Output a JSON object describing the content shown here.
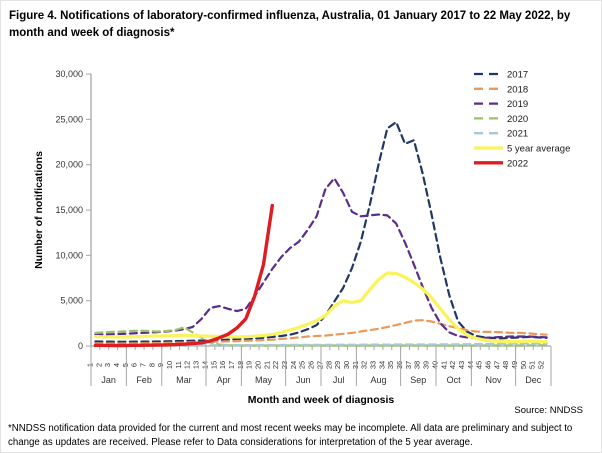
{
  "figure": {
    "title": "Figure 4. Notifications of laboratory-confirmed influenza, Australia, 01 January 2017 to 22 May 2022, by month and week of diagnosis*",
    "source": "Source: NNDSS",
    "footnote": "*NNDSS notification data provided for the current and most recent weeks may be incomplete. All data are preliminary and subject to change as updates are received. Please refer to Data considerations for interpretation of the 5 year average."
  },
  "chart_data": {
    "type": "line",
    "title": "Notifications of laboratory-confirmed influenza, Australia, 01 January 2017 to 22 May 2022, by month and week of diagnosis",
    "xlabel": "Month and week of diagnosis",
    "ylabel": "Number of notifications",
    "ylim": [
      0,
      30000
    ],
    "y_step": 5000,
    "y_ticks": [
      "0",
      "5,000",
      "10,000",
      "15,000",
      "20,000",
      "25,000",
      "30,000"
    ],
    "x_count": 52,
    "grid": false,
    "legend_position": "top-right",
    "axis_color": "#A6A6A6",
    "months": [
      {
        "label": "Jan",
        "weeks": 4
      },
      {
        "label": "Feb",
        "weeks": 4
      },
      {
        "label": "Mar",
        "weeks": 5
      },
      {
        "label": "Apr",
        "weeks": 4
      },
      {
        "label": "May",
        "weeks": 5
      },
      {
        "label": "Jun",
        "weeks": 4
      },
      {
        "label": "Jul",
        "weeks": 4
      },
      {
        "label": "Aug",
        "weeks": 5
      },
      {
        "label": "Sep",
        "weeks": 4
      },
      {
        "label": "Oct",
        "weeks": 4
      },
      {
        "label": "Nov",
        "weeks": 5
      },
      {
        "label": "Dec",
        "weeks": 4
      }
    ],
    "series": [
      {
        "key": "2017",
        "name": "2017",
        "color": "#1F3864",
        "style": "dashed",
        "values": [
          500,
          480,
          470,
          460,
          470,
          480,
          490,
          500,
          520,
          540,
          560,
          580,
          600,
          630,
          660,
          700,
          740,
          790,
          840,
          900,
          1000,
          1100,
          1250,
          1500,
          1850,
          2300,
          3350,
          4900,
          6400,
          8600,
          11500,
          15500,
          20000,
          24000,
          24700,
          22300,
          22700,
          19000,
          14500,
          9700,
          5600,
          2700,
          1600,
          1100,
          950,
          880,
          850,
          900,
          950,
          1000,
          950,
          900
        ]
      },
      {
        "key": "2018",
        "name": "2018",
        "color": "#E8995C",
        "style": "dashed",
        "values": [
          300,
          290,
          280,
          280,
          290,
          300,
          310,
          320,
          340,
          360,
          380,
          400,
          420,
          450,
          480,
          510,
          540,
          570,
          610,
          650,
          700,
          780,
          850,
          950,
          1050,
          1100,
          1150,
          1250,
          1350,
          1450,
          1600,
          1750,
          1900,
          2100,
          2300,
          2550,
          2800,
          2850,
          2700,
          2450,
          2200,
          1950,
          1750,
          1600,
          1550,
          1550,
          1500,
          1450,
          1450,
          1400,
          1300,
          1250
        ]
      },
      {
        "key": "2019",
        "name": "2019",
        "color": "#5B2D8A",
        "style": "dashed",
        "values": [
          1300,
          1280,
          1300,
          1330,
          1380,
          1430,
          1480,
          1530,
          1600,
          1700,
          1850,
          2100,
          3000,
          4200,
          4400,
          4100,
          3850,
          4100,
          5500,
          7000,
          8500,
          9800,
          10800,
          11500,
          12800,
          14300,
          17300,
          18500,
          16900,
          14800,
          14300,
          14400,
          14500,
          14400,
          13500,
          11400,
          9000,
          6500,
          4200,
          2500,
          1500,
          1100,
          950,
          900,
          900,
          950,
          1000,
          1050,
          1050,
          1050,
          1000,
          950
        ]
      },
      {
        "key": "2020",
        "name": "2020",
        "color": "#9BC269",
        "style": "dashed",
        "values": [
          1450,
          1500,
          1550,
          1600,
          1650,
          1700,
          1650,
          1600,
          1650,
          1750,
          2050,
          1500,
          900,
          400,
          150,
          80,
          60,
          50,
          50,
          50,
          50,
          50,
          50,
          50,
          50,
          50,
          50,
          50,
          50,
          50,
          50,
          50,
          50,
          50,
          50,
          50,
          50,
          50,
          50,
          50,
          50,
          50,
          50,
          50,
          50,
          50,
          50,
          50,
          60,
          70,
          80,
          90
        ]
      },
      {
        "key": "2021",
        "name": "2021",
        "color": "#A6C9D6",
        "style": "dashed",
        "values": [
          60,
          55,
          50,
          50,
          50,
          55,
          60,
          60,
          65,
          70,
          75,
          80,
          85,
          90,
          90,
          95,
          100,
          100,
          105,
          110,
          110,
          115,
          120,
          120,
          125,
          130,
          130,
          135,
          140,
          140,
          145,
          150,
          150,
          155,
          160,
          160,
          165,
          170,
          170,
          175,
          180,
          190,
          200,
          210,
          220,
          230,
          240,
          250,
          250,
          250,
          250,
          250
        ]
      },
      {
        "key": "5yr",
        "name": "5 year average",
        "color": "#FAF35C",
        "style": "solid",
        "values": [
          1050,
          1020,
          1000,
          1000,
          1020,
          1050,
          1080,
          1100,
          1120,
          1150,
          1200,
          1150,
          1100,
          1080,
          1050,
          1020,
          1000,
          1020,
          1080,
          1150,
          1280,
          1500,
          1750,
          2050,
          2400,
          2800,
          3350,
          4400,
          5000,
          4800,
          5000,
          6200,
          7300,
          8050,
          8000,
          7600,
          7000,
          6300,
          5300,
          4100,
          2900,
          1900,
          1200,
          850,
          650,
          550,
          500,
          480,
          500,
          550,
          520,
          480
        ]
      },
      {
        "key": "2022",
        "name": "2022",
        "color": "#DD1D21",
        "style": "solid",
        "values": [
          80,
          70,
          60,
          60,
          70,
          80,
          90,
          100,
          120,
          150,
          200,
          260,
          350,
          550,
          900,
          1300,
          2000,
          3000,
          5500,
          9000,
          15500
        ]
      }
    ]
  }
}
